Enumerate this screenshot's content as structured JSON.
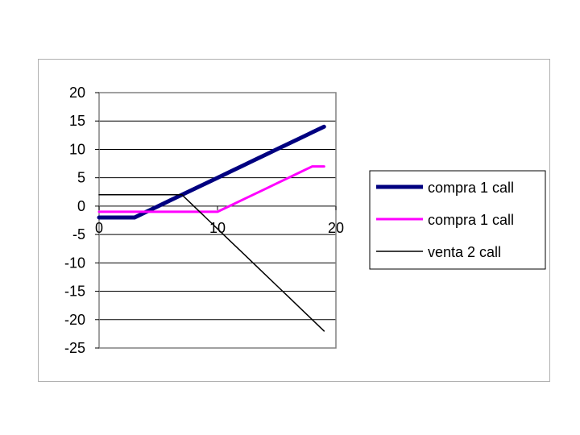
{
  "chart_data": {
    "type": "line",
    "x_ticks": [
      "0",
      "10",
      "20"
    ],
    "y_ticks": [
      "20",
      "15",
      "10",
      "5",
      "0",
      "-5",
      "-10",
      "-15",
      "-20",
      "-25"
    ],
    "xlim": [
      0,
      20
    ],
    "ylim": [
      -25,
      20
    ],
    "grid": "horizontal",
    "legend_position": "right",
    "series": [
      {
        "name": "compra 1 call",
        "color": "#000080",
        "line_weight": "thick",
        "x": [
          0,
          1,
          2,
          3,
          4,
          5,
          6,
          7,
          8,
          9,
          10,
          11,
          12,
          13,
          14,
          15,
          16,
          17,
          18,
          19
        ],
        "y": [
          -2,
          -2,
          -2,
          -2,
          -1,
          0,
          1,
          2,
          3,
          4,
          5,
          6,
          7,
          8,
          9,
          10,
          11,
          12,
          13,
          14
        ]
      },
      {
        "name": "compra 1 call",
        "color": "#ff00ff",
        "line_weight": "medium",
        "x": [
          0,
          1,
          2,
          3,
          4,
          5,
          6,
          7,
          8,
          9,
          10,
          11,
          12,
          13,
          14,
          15,
          16,
          17,
          18,
          19
        ],
        "y": [
          -1,
          -1,
          -1,
          -1,
          -1,
          -1,
          -1,
          -1,
          -1,
          -1,
          -1,
          0,
          1,
          2,
          3,
          4,
          5,
          6,
          7,
          7
        ]
      },
      {
        "name": "venta 2 call",
        "color": "#000000",
        "line_weight": "thin",
        "x": [
          0,
          1,
          2,
          3,
          4,
          5,
          6,
          7,
          8,
          9,
          10,
          11,
          12,
          13,
          14,
          15,
          16,
          17,
          18,
          19
        ],
        "y": [
          2,
          2,
          2,
          2,
          2,
          2,
          2,
          2,
          0,
          -2,
          -4,
          -6,
          -8,
          -10,
          -12,
          -14,
          -16,
          -18,
          -20,
          -22
        ]
      }
    ]
  }
}
